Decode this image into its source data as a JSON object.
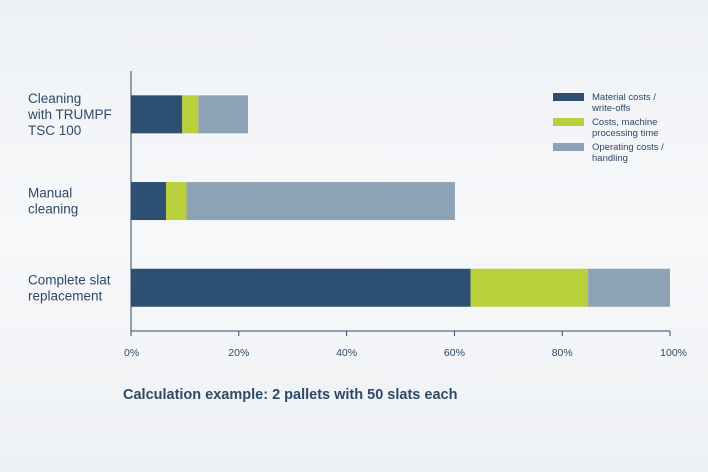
{
  "chart_data": {
    "type": "bar",
    "orientation": "horizontal",
    "stacked": true,
    "categories": [
      [
        "Cleaning",
        "with TRUMPF",
        "TSC 100"
      ],
      [
        "Manual",
        "cleaning"
      ],
      [
        "Complete slat",
        "replacement"
      ]
    ],
    "series": [
      {
        "name": [
          "Material costs /",
          "write-offs"
        ],
        "color": "#2c4f72",
        "values": [
          9.5,
          6.5,
          63
        ]
      },
      {
        "name": [
          "Costs, machine",
          "processing time"
        ],
        "color": "#b9cf3c",
        "values": [
          3,
          3.8,
          21.8
        ]
      },
      {
        "name": [
          "Operating costs /",
          "handling"
        ],
        "color": "#8ea2b5",
        "values": [
          9.2,
          49.8,
          15.2
        ]
      }
    ],
    "xlim": [
      0,
      100
    ],
    "xticks": [
      0,
      20,
      40,
      60,
      80,
      100
    ],
    "xtick_labels": [
      "0%",
      "20%",
      "40%",
      "60%",
      "80%",
      "100%"
    ],
    "grid": false,
    "legend_position": "top-right",
    "caption": "Calculation example: 2 pallets with 50 slats each"
  }
}
